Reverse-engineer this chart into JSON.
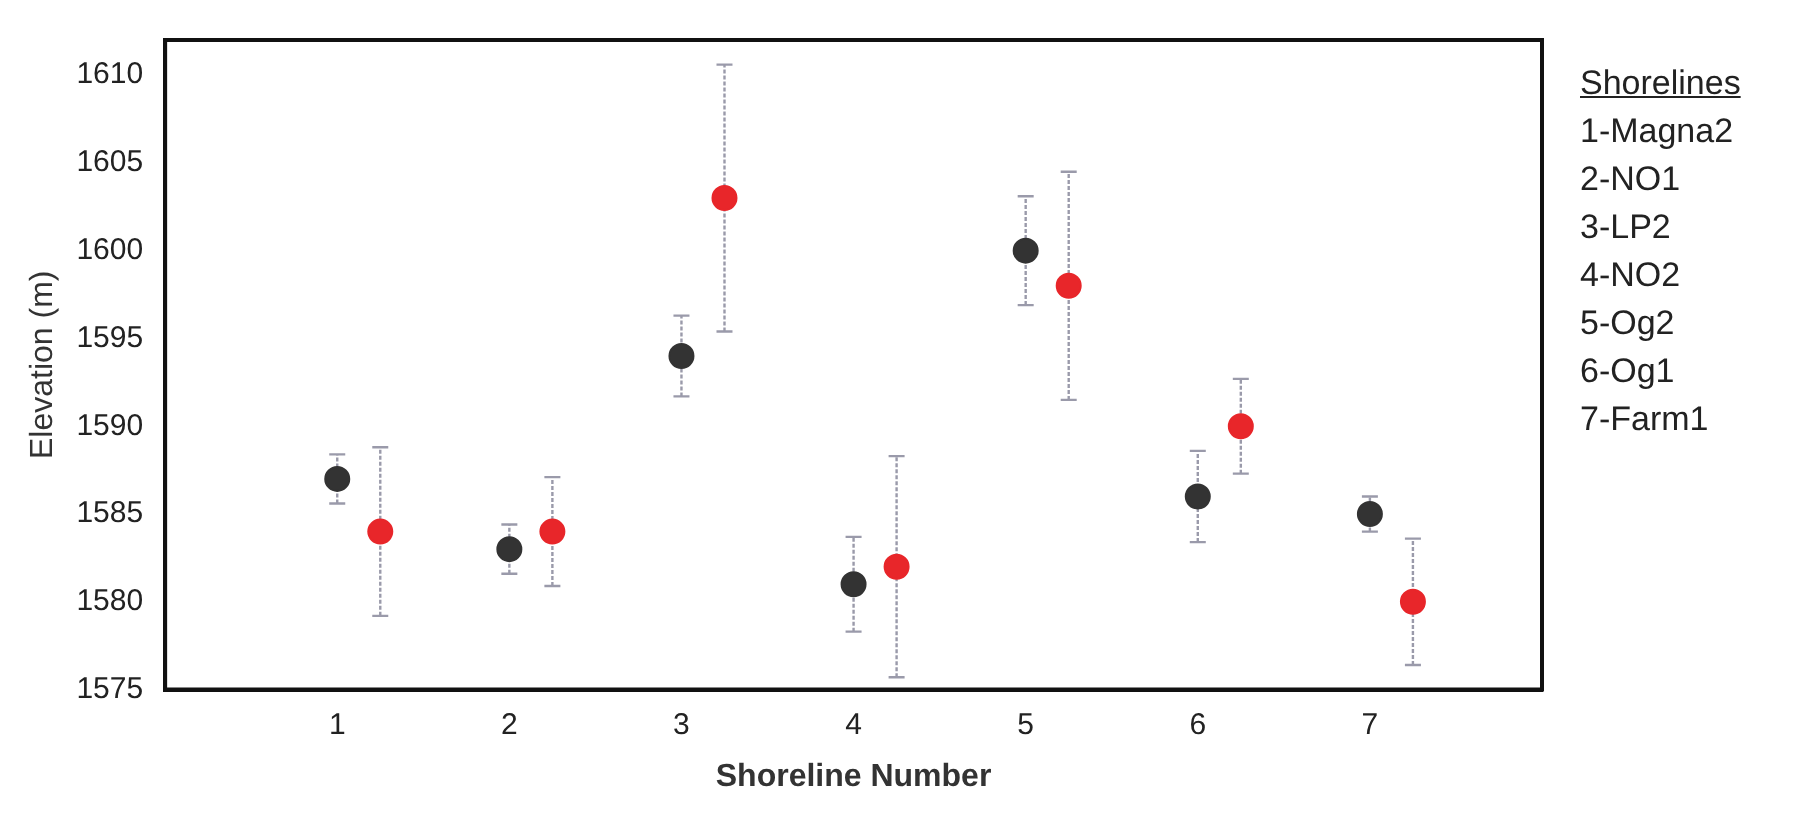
{
  "chart_data": {
    "type": "scatter",
    "xlabel": "Shoreline Number",
    "ylabel": "Elevation (m)",
    "xlim": [
      0,
      8
    ],
    "xticks": [
      1,
      2,
      3,
      4,
      5,
      6,
      7
    ],
    "ylim": [
      1575,
      1612
    ],
    "yticks": [
      1575,
      1580,
      1585,
      1590,
      1595,
      1600,
      1605,
      1610
    ],
    "grid": false,
    "legend": false,
    "marker": "circle",
    "series": [
      {
        "color": "#333333",
        "x": [
          1,
          2,
          3,
          4,
          5,
          6,
          7
        ],
        "values": [
          1587,
          1583,
          1594,
          1581,
          1600,
          1586,
          1585
        ],
        "errors": [
          1.4,
          1.4,
          2.3,
          2.7,
          3.1,
          2.6,
          1.0
        ]
      },
      {
        "color": "#e8262a",
        "x": [
          1.25,
          2.25,
          3.25,
          4.25,
          5.25,
          6.25,
          7.25
        ],
        "values": [
          1584,
          1584,
          1603,
          1582,
          1598,
          1590,
          1580
        ],
        "errors": [
          4.8,
          3.1,
          7.6,
          6.3,
          6.5,
          2.7,
          3.6
        ]
      }
    ],
    "annotations": [
      "Shorelines",
      "1-Magna2",
      "2-NO1",
      "3-LP2",
      "4-NO2",
      "5-Og2",
      "6-Og1",
      "7-Farm1"
    ]
  }
}
